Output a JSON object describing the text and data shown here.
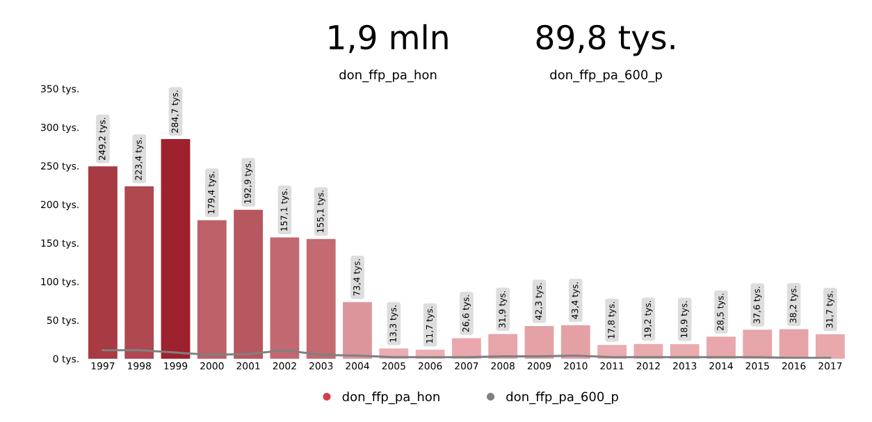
{
  "chart_data": {
    "type": "bar",
    "annotations": [
      "1,9 mln",
      "don_ffp_pa_hon",
      "89,8 tys.",
      "don_ffp_pa_600_p"
    ],
    "categories": [
      "1997",
      "1998",
      "1999",
      "2000",
      "2001",
      "2002",
      "2003",
      "2004",
      "2005",
      "2006",
      "2007",
      "2008",
      "2009",
      "2010",
      "2011",
      "2012",
      "2013",
      "2014",
      "2015",
      "2016",
      "2017"
    ],
    "series": [
      {
        "name": "don_ffp_pa_hon",
        "color": "#d13f4b",
        "colors": [
          "#a83a44",
          "#b04852",
          "#9e212e",
          "#bd6068",
          "#b75760",
          "#c26870",
          "#c46a71",
          "#dc959b",
          "#eaadb1",
          "#ebaeb2",
          "#e8a8ad",
          "#e6a5a9",
          "#e4a2a6",
          "#e4a1a5",
          "#eaacb0",
          "#e9aaae",
          "#eaabaf",
          "#e8a7ab",
          "#e6a5a9",
          "#e6a4a8",
          "#e8a8ac"
        ],
        "values": [
          249.2,
          223.4,
          284.7,
          179.4,
          192.9,
          157.1,
          155.1,
          73.4,
          13.3,
          11.7,
          26.6,
          31.9,
          42.3,
          43.4,
          17.8,
          19.2,
          18.9,
          28.5,
          37.6,
          38.2,
          31.7
        ],
        "value_labels": [
          "249,2 tys.",
          "223,4 tys.",
          "284,7 tys.",
          "179,4 tys.",
          "192,9 tys.",
          "157,1 tys.",
          "155,1 tys.",
          "73,4 tys.",
          "13,3 tys.",
          "11,7 tys.",
          "26,6 tys.",
          "31,9 tys.",
          "42,3 tys.",
          "43,4 tys.",
          "17,8 tys.",
          "19,2 tys.",
          "18,9 tys.",
          "28,5 tys.",
          "37,6 tys.",
          "38,2 tys.",
          "31,7 tys."
        ]
      },
      {
        "name": "don_ffp_pa_600_p",
        "type": "line",
        "color": "#808080",
        "values": [
          11,
          11,
          8,
          5,
          6,
          11,
          5,
          4,
          2,
          2,
          2,
          3,
          3,
          4,
          2,
          2,
          2,
          2,
          2,
          1,
          1
        ]
      }
    ],
    "ylim": [
      0,
      350
    ],
    "yticks": [
      {
        "value": 0,
        "label": "0 tys."
      },
      {
        "value": 50,
        "label": "50 tys."
      },
      {
        "value": 100,
        "label": "100 tys."
      },
      {
        "value": 150,
        "label": "150 tys."
      },
      {
        "value": 200,
        "label": "200 tys."
      },
      {
        "value": 250,
        "label": "250 tys."
      },
      {
        "value": 300,
        "label": "300 tys."
      },
      {
        "value": 350,
        "label": "350 tys."
      }
    ],
    "legend": "bottom",
    "grid": false,
    "marker": "none",
    "line_style": "solid"
  }
}
